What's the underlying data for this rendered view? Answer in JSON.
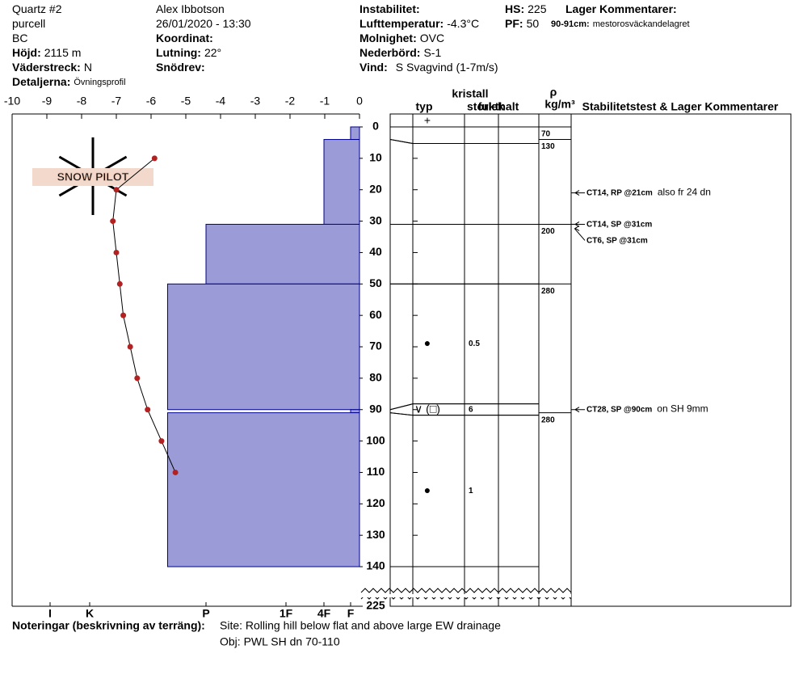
{
  "header": {
    "fields": [
      {
        "value": "Quartz #2"
      },
      {
        "value": "purcell"
      },
      {
        "value": "BC"
      },
      {
        "label": "Höjd:",
        "value": "2115 m"
      },
      {
        "label": "Väderstreck:",
        "value": "N"
      },
      {
        "label": "Detaljerna:",
        "value": "Övningsprofil"
      },
      {
        "value": "Alex Ibbotson"
      },
      {
        "value": "26/01/2020 - 13:30"
      },
      {
        "label": "Koordinat:"
      },
      {
        "label": "Lutning:",
        "value": "22°"
      },
      {
        "label": "Snödrev:"
      },
      {
        "label": "Instabilitet:"
      },
      {
        "label": "Lufttemperatur:",
        "value": "-4.3°C"
      },
      {
        "label": "Molnighet:",
        "value": "OVC"
      },
      {
        "label": "Nederbörd:",
        "value": "S-1"
      },
      {
        "label": "Vind:",
        "value": "S Svagvind (1-7m/s)"
      },
      {
        "label": "HS:",
        "value": "225"
      },
      {
        "label": "PF:",
        "value": "50"
      },
      {
        "label": "Lager Kommentarer:"
      },
      {
        "label": "90-91cm:",
        "value": "mestorosväckandelagret"
      }
    ]
  },
  "chart_data": {
    "type": "snow-profile",
    "watermark": "SNOW PILOT",
    "xlim": [
      -10,
      0
    ],
    "xticks": [
      -10,
      -9,
      -8,
      -7,
      -6,
      -5,
      -4,
      -3,
      -2,
      -1,
      0
    ],
    "depth_ticks": [
      0,
      10,
      20,
      30,
      40,
      50,
      60,
      70,
      80,
      90,
      100,
      110,
      120,
      130,
      140,
      225
    ],
    "hardness_ticks": [
      {
        "value": 6,
        "label": "I"
      },
      {
        "value": 5,
        "label": "K"
      },
      {
        "value": 4,
        "label": "P"
      },
      {
        "value": 3,
        "label": "1F"
      },
      {
        "value": 2,
        "label": "4F"
      },
      {
        "value": 1,
        "label": "F"
      }
    ],
    "temperature": {
      "color": "#b22222",
      "depths": [
        10,
        20,
        30,
        40,
        50,
        60,
        70,
        80,
        90,
        100,
        110
      ],
      "temps": [
        -5.9,
        -7.0,
        -7.1,
        -7.0,
        -6.9,
        -6.8,
        -6.6,
        -6.4,
        -6.1,
        -5.7,
        -5.3
      ]
    },
    "hardness_color": "#9b9bd7",
    "layers": [
      {
        "top": 0,
        "bottom": 4,
        "hardness": 1,
        "grain": "+"
      },
      {
        "top": 4,
        "bottom": 31,
        "hardness": 2
      },
      {
        "top": 31,
        "bottom": 50,
        "hardness": 4
      },
      {
        "top": 50,
        "bottom": 90,
        "hardness": 4.33,
        "grain": "●",
        "size": "0.5"
      },
      {
        "top": 90,
        "bottom": 91,
        "hardness": 1,
        "grain": "∨ (□)",
        "size": "6"
      },
      {
        "top": 91,
        "bottom": 140,
        "hardness": 4.33,
        "grain": "●",
        "size": "1"
      }
    ],
    "densities": [
      {
        "top": 0,
        "bottom": 4,
        "density": 70
      },
      {
        "top": 4,
        "bottom": 31,
        "density": 130
      },
      {
        "top": 31,
        "bottom": 50,
        "density": 200
      },
      {
        "top": 50,
        "bottom": 90,
        "density": 280
      },
      {
        "top": 91,
        "bottom": 140,
        "density": 280
      }
    ],
    "columns": {
      "type": "typ",
      "crystal": "kristall",
      "size": "storlek",
      "moisture": "fukthalt",
      "rho": "ρ",
      "density_unit": "kg/m³",
      "tests": "Stabilitetstest & Lager Kommentarer"
    },
    "tests": [
      {
        "label": "CT14, RP @21cm",
        "comment": "also fr 24 dn",
        "depth": 21
      },
      {
        "label": "CT14, SP @31cm",
        "depth": 31
      },
      {
        "label": "CT6, SP @31cm",
        "depth": 31
      },
      {
        "label": "CT28, SP @90cm",
        "comment": "on SH 9mm",
        "depth": 90
      }
    ]
  },
  "footer": {
    "label": "Noteringar (beskrivning av terräng):",
    "lines": [
      "Site: Rolling hill below flat and above large EW drainage",
      "Obj: PWL SH dn 70-110"
    ]
  }
}
